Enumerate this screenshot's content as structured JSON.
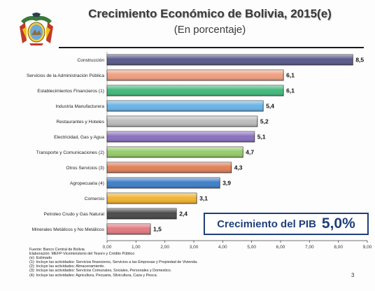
{
  "header": {
    "title": "Crecimiento Económico de Bolivia, 2015(e)",
    "subtitle": "(En porcentaje)"
  },
  "logo": {
    "name": "bolivia-coat-of-arms-icon"
  },
  "chart_data": {
    "type": "bar",
    "orientation": "horizontal",
    "title": "Crecimiento Económico de Bolivia, 2015(e)",
    "subtitle": "(En porcentaje)",
    "categories": [
      "Construcción",
      "Servicios de la Administración Pública",
      "Establecimientos Financieros (1)",
      "Industria Manufacturera",
      "Restaurantes y Hoteles",
      "Electricidad, Gas y Agua",
      "Transporte y Comunicaciones (2)",
      "Otros Servicios (3)",
      "Agropecuaria (4)",
      "Comercio",
      "Petroleo Crudo y Gas Natural",
      "Minerales Metálicos y No Metálicos"
    ],
    "values": [
      8.5,
      6.1,
      6.1,
      5.4,
      5.2,
      5.1,
      4.7,
      4.3,
      3.9,
      3.1,
      2.4,
      1.5
    ],
    "value_labels": [
      "8,5",
      "6,1",
      "6,1",
      "5,4",
      "5,2",
      "5,1",
      "4,7",
      "4,3",
      "3,9",
      "3,1",
      "2,4",
      "1,5"
    ],
    "colors": [
      "#5a5a8c",
      "#f0a080",
      "#44b87c",
      "#6ab4e8",
      "#bdbdbd",
      "#8a70c0",
      "#96cc6c",
      "#e08058",
      "#3f7fc8",
      "#f0b432",
      "#4a4a4a",
      "#e27a80"
    ],
    "xlim": [
      0,
      9
    ],
    "xticks": [
      "0,00",
      "1,00",
      "2,00",
      "3,00",
      "4,00",
      "5,00",
      "6,00",
      "7,00",
      "8,00",
      "9,00"
    ],
    "grid": false
  },
  "highlight": {
    "label": "Crecimiento del PIB",
    "value": "5,0%"
  },
  "notes": [
    "Fuente: Banco Central de Bolivia",
    "Elaboración: MEFP-Viceministerio del Tesoro y Crédito Público",
    "(e): Estimado",
    "(1): Incluye las actividades: Servicios financieros, Servicios a las Empresas y Propiedad de Vivienda.",
    "(2): Incluye las actividades: Almacenamiento.",
    "(3): Incluye las actividades: Servicios Comunales, Sociales, Personales y Domestico.",
    "(4): Incluye las actividades: Agricultura, Pecuaria, Silvicultura, Caza y Pesca."
  ],
  "page_number": "3"
}
